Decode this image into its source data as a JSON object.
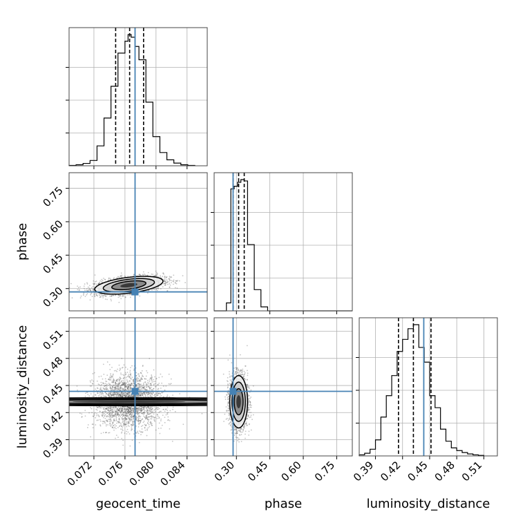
{
  "chart_data": {
    "type": "corner",
    "parameters": [
      "geocent_time",
      "phase",
      "luminosity_distance"
    ],
    "truths": {
      "geocent_time": 0.0773,
      "phase": 0.285,
      "luminosity_distance": 0.4435
    },
    "quantiles": {
      "geocent_time": [
        0.0748,
        0.0766,
        0.0784
      ],
      "phase": [
        0.285,
        0.31,
        0.335
      ],
      "luminosity_distance": [
        0.4155,
        0.432,
        0.4515
      ]
    },
    "ranges": {
      "geocent_time": [
        0.0688,
        0.0866
      ],
      "phase": [
        0.2,
        0.82
      ],
      "luminosity_distance": [
        0.372,
        0.525
      ]
    },
    "ticks": {
      "geocent_time": [
        "0.072",
        "0.076",
        "0.080",
        "0.084"
      ],
      "phase": [
        "0.30",
        "0.45",
        "0.60",
        "0.75"
      ],
      "luminosity_distance": [
        "0.39",
        "0.42",
        "0.45",
        "0.48",
        "0.51"
      ]
    },
    "histograms": {
      "geocent_time": {
        "edges": [
          0.0688,
          0.0697,
          0.0706,
          0.0715,
          0.0724,
          0.0733,
          0.0742,
          0.0751,
          0.076,
          0.0764,
          0.0768,
          0.0773,
          0.0778,
          0.0787,
          0.0796,
          0.0805,
          0.0814,
          0.0823,
          0.0832,
          0.0841,
          0.085
        ],
        "counts": [
          0.003,
          0.008,
          0.018,
          0.04,
          0.15,
          0.36,
          0.6,
          0.85,
          0.94,
          0.99,
          0.97,
          0.9,
          0.8,
          0.48,
          0.22,
          0.1,
          0.045,
          0.02,
          0.008,
          0.003
        ]
      },
      "phase": {
        "edges": [
          0.2,
          0.255,
          0.275,
          0.29,
          0.305,
          0.32,
          0.335,
          0.35,
          0.38,
          0.41,
          0.44,
          0.82
        ],
        "counts": [
          0,
          0.06,
          0.92,
          0.94,
          0.97,
          0.99,
          0.98,
          0.5,
          0.16,
          0.03,
          0
        ]
      },
      "luminosity_distance": {
        "edges": [
          0.372,
          0.378,
          0.384,
          0.39,
          0.396,
          0.402,
          0.408,
          0.414,
          0.42,
          0.426,
          0.432,
          0.438,
          0.444,
          0.45,
          0.456,
          0.462,
          0.468,
          0.474,
          0.48,
          0.486,
          0.492,
          0.498,
          0.504,
          0.51
        ],
        "counts": [
          0.008,
          0.02,
          0.05,
          0.12,
          0.29,
          0.45,
          0.6,
          0.78,
          0.87,
          0.95,
          0.98,
          0.81,
          0.7,
          0.45,
          0.36,
          0.2,
          0.11,
          0.06,
          0.04,
          0.025,
          0.015,
          0.008,
          0.004
        ]
      }
    },
    "posteriors_2d": {
      "phase_vs_geocent_time": {
        "mean": [
          0.0765,
          0.315
        ],
        "std": [
          0.0022,
          0.02
        ],
        "rho": 0.45
      },
      "luminosity_distance_vs_geocent_time": {
        "mean": [
          0.0765,
          0.432
        ],
        "std": [
          0.0022,
          0.0145
        ],
        "rho": 0.0
      },
      "luminosity_distance_vs_phase": {
        "mean": [
          0.31,
          0.432
        ],
        "std": [
          0.02,
          0.0145
        ],
        "rho": 0.0
      }
    },
    "colors": {
      "truth": "#4682b4",
      "hist": "#000000",
      "points": "#555555"
    },
    "grid": true
  }
}
